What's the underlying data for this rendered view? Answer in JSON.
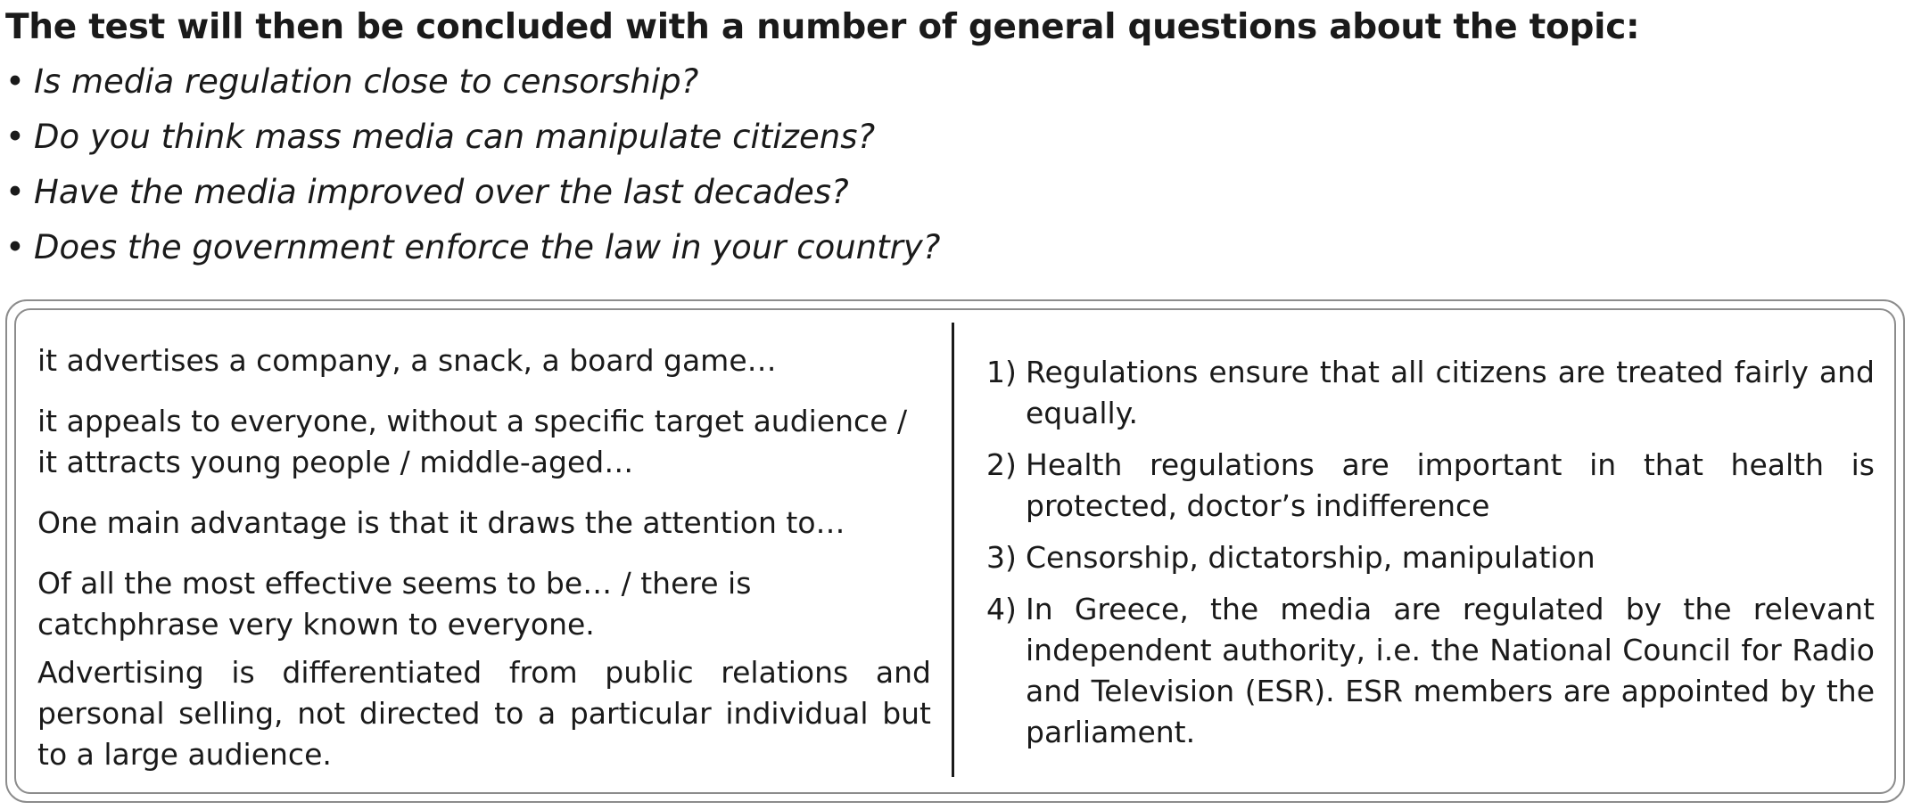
{
  "heading": "The test will then be concluded with a number of general questions about the topic:",
  "bullet_glyph": "•",
  "questions": [
    "Is media regulation close to censorship?",
    "Do you think mass media can manipulate citizens?",
    "Have the media improved over the last decades?",
    "Does the government enforce the law in your country?"
  ],
  "left_column": [
    "it advertises a company, a snack, a board game…",
    "it appeals to everyone, without a specific target audience / it attracts young people / middle-aged…",
    "One main advantage is that it draws the attention to…",
    "Of all the most effective seems to be… / there is catchphrase very known to everyone.",
    "Advertising is differentiated from public relations and personal selling, not directed to a particular individual but to a large audience."
  ],
  "right_column": [
    {
      "number": "1)",
      "text": "Regulations ensure that all citizens are treated fairly and equally."
    },
    {
      "number": "2)",
      "text": "Health regulations are important in that health is protected, doctor’s indifference"
    },
    {
      "number": "3)",
      "text": "Censorship, dictatorship, manipulation"
    },
    {
      "number": "4)",
      "text": "In Greece, the media are regulated by the relevant independent authority, i.e. the National Council for Radio and Television (ESR). ESR members are appointed by the parliament."
    }
  ]
}
